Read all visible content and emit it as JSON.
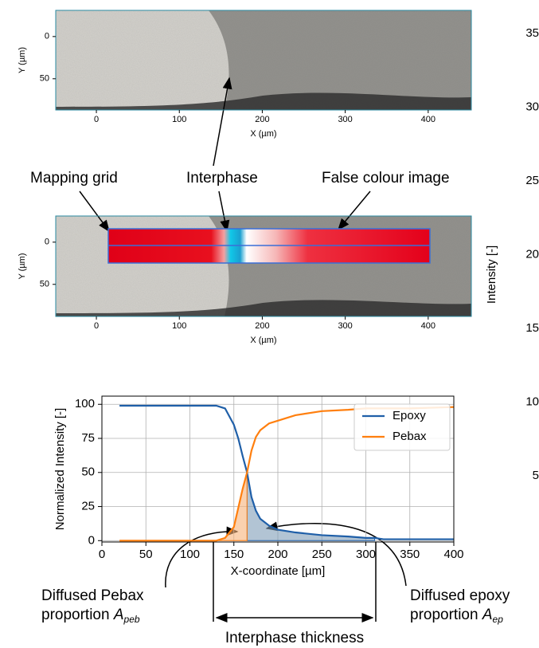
{
  "chart_data": [
    {
      "type": "image",
      "xlabel": "X (µm)",
      "ylabel": "Y (µm)",
      "xlim": [
        -49,
        452
      ],
      "ylim": [
        -31,
        87
      ],
      "xticks": [
        0,
        100,
        200,
        300,
        400
      ],
      "yticks": [
        0,
        50
      ]
    },
    {
      "type": "image",
      "xlabel": "X (µm)",
      "ylabel": "Y (µm)",
      "xlim": [
        -49,
        452
      ],
      "ylim": [
        -31,
        88
      ],
      "xticks": [
        0,
        100,
        200,
        300,
        400
      ],
      "yticks": [
        0,
        50
      ],
      "mapping_grid": true
    },
    {
      "type": "line",
      "xlabel": "X-coordinate [µm]",
      "ylabel": "Normalized Intensity [-]",
      "x": [
        20,
        130,
        140,
        150,
        155,
        160,
        165,
        170,
        175,
        180,
        190,
        200,
        220,
        250,
        280,
        300,
        310,
        320,
        350,
        400
      ],
      "series": [
        {
          "name": "Epoxy",
          "color": "#1f5fa8",
          "fill": "#7f9cb8",
          "fill_range": [
            165,
            310
          ],
          "values": [
            99,
            99,
            97,
            85,
            75,
            62,
            50,
            32,
            22,
            16,
            11,
            8,
            6,
            4,
            3,
            2,
            2,
            1,
            1,
            1
          ]
        },
        {
          "name": "Pebax",
          "color": "#ff7f0e",
          "fill": "#f7b27a",
          "fill_range": [
            130,
            165
          ],
          "values": [
            0,
            0,
            2,
            10,
            24,
            38,
            50,
            66,
            76,
            81,
            86,
            88,
            92,
            95,
            96,
            97,
            97,
            97,
            97,
            98
          ]
        }
      ],
      "xlim": [
        0,
        400
      ],
      "ylim": [
        -1,
        106
      ],
      "xticks": [
        0,
        50,
        100,
        150,
        200,
        250,
        300,
        350,
        400
      ],
      "yticks": [
        0,
        25,
        50,
        75,
        100
      ],
      "grid": true,
      "legend": "upper right"
    },
    {
      "type": "axis-fragment",
      "ylabel": "Intensity [-]",
      "ylim": [
        5,
        35
      ],
      "yticks": [
        5,
        10,
        15,
        20,
        25,
        30,
        35
      ]
    }
  ],
  "annotations": {
    "mapping_grid": "Mapping grid",
    "interphase": "Interphase",
    "false_colour": "False colour image",
    "pebax_1": "Diffused Pebax",
    "pebax_2": "proportion ",
    "pebax_sym": "A",
    "pebax_sub": "peb",
    "epoxy_1": "Diffused epoxy",
    "epoxy_2": "proportion ",
    "epoxy_sym": "A",
    "epoxy_sub": "ep",
    "thickness": "Interphase thickness"
  }
}
